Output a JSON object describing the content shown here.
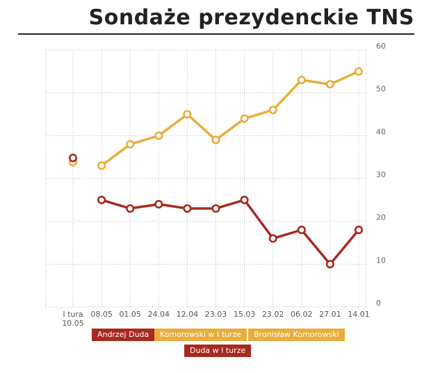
{
  "chart_data": {
    "type": "line",
    "title": "Sondaże prezydenckie TNS",
    "categories": [
      "14.01",
      "27.01",
      "06.02",
      "23.02",
      "15.03",
      "23.03",
      "12.04",
      "24.04",
      "01.05",
      "08.05",
      "I tura 10.05"
    ],
    "ylim": [
      0,
      60
    ],
    "yticks": [
      0,
      10,
      20,
      30,
      40,
      50,
      60
    ],
    "grid": true,
    "series": [
      {
        "name": "Bronisław Komorowski",
        "color": "#e8ad3b",
        "values": [
          55,
          52,
          53,
          46,
          44,
          39,
          45,
          40,
          38,
          33,
          null
        ]
      },
      {
        "name": "Andrzej Duda",
        "color": "#a8291f",
        "values": [
          18,
          10,
          18,
          16,
          25,
          23,
          23,
          24,
          23,
          25,
          null
        ]
      },
      {
        "name": "Komorowski w I turze",
        "color": "#e8ad3b",
        "values": [
          null,
          null,
          null,
          null,
          null,
          null,
          null,
          null,
          null,
          null,
          33.8
        ]
      },
      {
        "name": "Duda w I turze",
        "color": "#a8291f",
        "values": [
          null,
          null,
          null,
          null,
          null,
          null,
          null,
          null,
          null,
          null,
          34.8
        ]
      }
    ]
  },
  "legend": {
    "komorowski": "Bronisław Komorowski",
    "komorowski_first_round": "Komorowski w I turze",
    "duda": "Andrzej Duda",
    "duda_first_round": "Duda w I turze"
  }
}
